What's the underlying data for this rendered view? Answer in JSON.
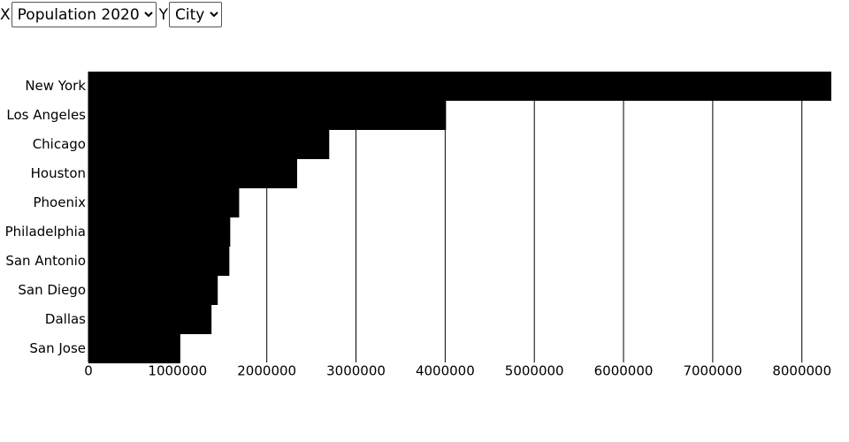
{
  "controls": {
    "x_label": "X",
    "x_selected": "Population 2020",
    "y_label": "Y",
    "y_selected": "City"
  },
  "chart_data": {
    "type": "bar",
    "orientation": "horizontal",
    "categories": [
      "New York",
      "Los Angeles",
      "Chicago",
      "Houston",
      "Phoenix",
      "Philadelphia",
      "San Antonio",
      "San Diego",
      "Dallas",
      "San Jose"
    ],
    "values": [
      8330000,
      4010000,
      2700000,
      2340000,
      1690000,
      1590000,
      1580000,
      1450000,
      1380000,
      1030000
    ],
    "color": "#000000",
    "xlim": [
      0,
      8330000
    ],
    "xticks": [
      0,
      1000000,
      2000000,
      3000000,
      4000000,
      5000000,
      6000000,
      7000000,
      8000000
    ],
    "grid": true
  }
}
